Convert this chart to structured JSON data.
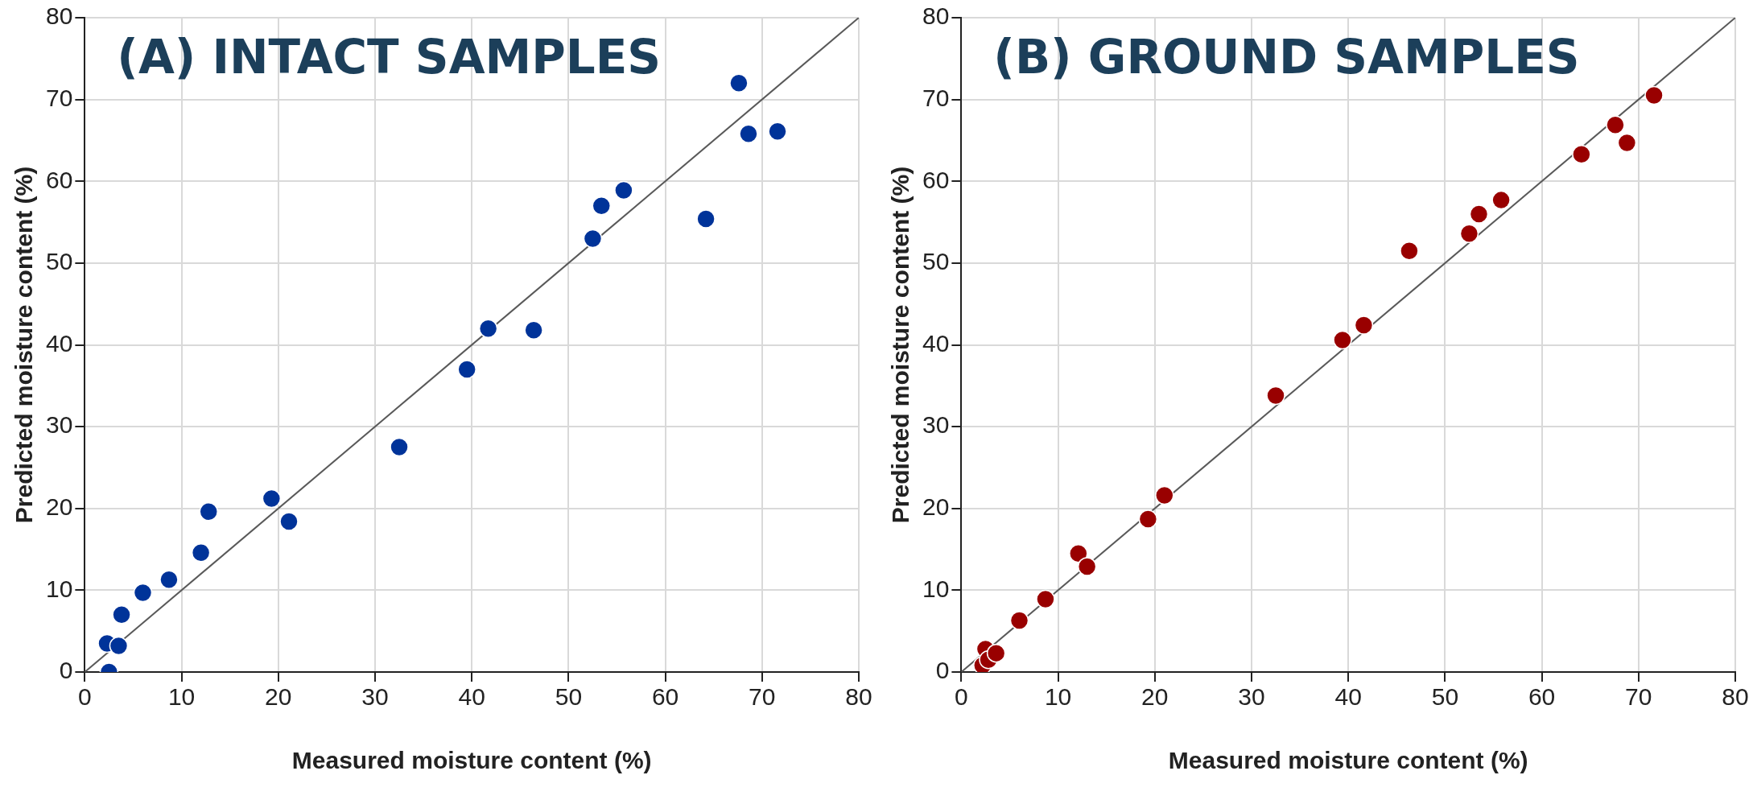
{
  "chart_data": [
    {
      "type": "scatter",
      "title": "(A) INTACT SAMPLES",
      "xlabel": "Measured moisture content (%)",
      "ylabel": "Predicted moisture content (%)",
      "xlim": [
        0,
        80
      ],
      "ylim": [
        0,
        80
      ],
      "xticks": [
        0,
        10,
        20,
        30,
        40,
        50,
        60,
        70,
        80
      ],
      "yticks": [
        0,
        10,
        20,
        30,
        40,
        50,
        60,
        70,
        80
      ],
      "grid": true,
      "legend": false,
      "series": [
        {
          "color": "#003399",
          "marker": "circle",
          "x": [
            2.3,
            3.5,
            2.5,
            3.8,
            6,
            8.7,
            12,
            12.8,
            19.3,
            21.1,
            32.5,
            39.5,
            41.7,
            46.4,
            52.5,
            53.4,
            55.7,
            64.2,
            67.6,
            68.6,
            71.6
          ],
          "values": [
            3.5,
            3.2,
            0,
            7,
            9.7,
            11.3,
            14.6,
            19.6,
            21.2,
            18.4,
            27.5,
            37,
            42,
            41.8,
            53,
            57,
            58.9,
            55.4,
            72,
            65.8,
            66.1
          ]
        },
        {
          "type": "line",
          "marker": "none",
          "color": "#595959",
          "x": [
            0,
            80
          ],
          "values": [
            0,
            80
          ]
        }
      ]
    },
    {
      "type": "scatter",
      "title": "(B) GROUND SAMPLES",
      "xlabel": "Measured moisture content (%)",
      "ylabel": "Predicted moisture content (%)",
      "xlim": [
        0,
        80
      ],
      "ylim": [
        0,
        80
      ],
      "xticks": [
        0,
        10,
        20,
        30,
        40,
        50,
        60,
        70,
        80
      ],
      "yticks": [
        0,
        10,
        20,
        30,
        40,
        50,
        60,
        70,
        80
      ],
      "grid": true,
      "legend": false,
      "series": [
        {
          "color": "#990000",
          "marker": "circle",
          "x": [
            2.5,
            2.2,
            2.8,
            3.6,
            6,
            8.7,
            12.1,
            13,
            19.3,
            21,
            32.5,
            39.4,
            41.6,
            46.3,
            52.5,
            53.5,
            55.8,
            64.1,
            67.6,
            68.8,
            71.6
          ],
          "values": [
            2.8,
            0.8,
            1.5,
            2.3,
            6.3,
            8.9,
            14.5,
            12.9,
            18.7,
            21.6,
            33.8,
            40.6,
            42.4,
            51.5,
            53.6,
            56,
            57.7,
            63.3,
            66.9,
            64.7,
            70.5
          ]
        },
        {
          "type": "line",
          "marker": "none",
          "color": "#595959",
          "x": [
            0,
            80
          ],
          "values": [
            0,
            80
          ]
        }
      ]
    }
  ]
}
